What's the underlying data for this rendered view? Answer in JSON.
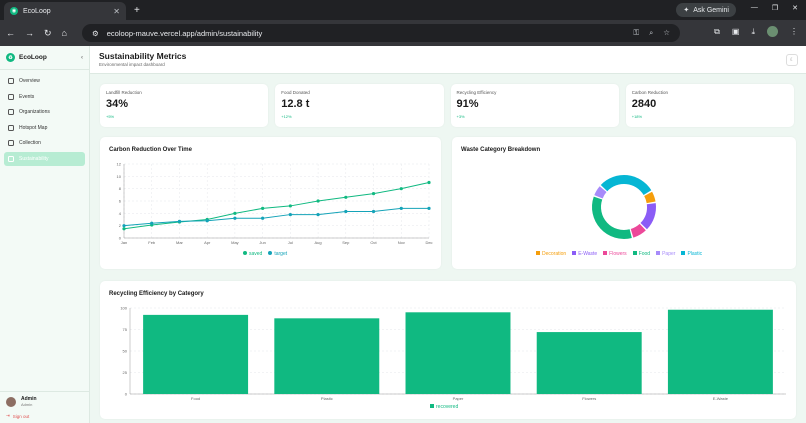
{
  "browser": {
    "tab_title": "EcoLoop",
    "url": "ecoloop-mauve.vercel.app/admin/sustainability",
    "gemini_label": "Ask Gemini"
  },
  "sidebar": {
    "brand": "EcoLoop",
    "items": [
      {
        "label": "Overview"
      },
      {
        "label": "Events"
      },
      {
        "label": "Organizations"
      },
      {
        "label": "Hotspot Map"
      },
      {
        "label": "Collection"
      },
      {
        "label": "Sustainability"
      }
    ],
    "user": {
      "name": "Admin",
      "role": "Admin"
    },
    "sign_out": "Sign out"
  },
  "header": {
    "title": "Sustainability Metrics",
    "subtitle": "Environmental impact dashboard"
  },
  "cards": [
    {
      "label": "Landfill Reduction",
      "value": "34%",
      "change": "+5%"
    },
    {
      "label": "Food Donated",
      "value": "12.8 t",
      "change": "+12%"
    },
    {
      "label": "Recycling Efficiency",
      "value": "91%",
      "change": "+3%"
    },
    {
      "label": "Carbon Reduction",
      "value": "2840",
      "change": "+18%"
    }
  ],
  "colors": {
    "accent": "#10b981",
    "line_saved": "#10b981",
    "line_target": "#14a3b8",
    "donut": [
      "#f59e0b",
      "#8b5cf6",
      "#ec4899",
      "#10b981",
      "#a78bfa",
      "#06b6d4"
    ]
  },
  "chart_data": [
    {
      "type": "line",
      "title": "Carbon Reduction Over Time",
      "categories": [
        "Jan",
        "Feb",
        "Mar",
        "Apr",
        "May",
        "Jun",
        "Jul",
        "Aug",
        "Sep",
        "Oct",
        "Nov",
        "Dec"
      ],
      "series": [
        {
          "name": "saved",
          "values": [
            1.5,
            2.1,
            2.6,
            3.0,
            4.0,
            4.8,
            5.2,
            6.0,
            6.6,
            7.2,
            8.0,
            9.0
          ]
        },
        {
          "name": "target",
          "values": [
            2.0,
            2.4,
            2.7,
            2.8,
            3.2,
            3.2,
            3.8,
            3.8,
            4.3,
            4.3,
            4.8,
            4.8
          ]
        }
      ],
      "yticks": [
        0,
        2,
        4,
        6,
        8,
        10,
        12
      ],
      "ylim": [
        0,
        12
      ],
      "grid": true,
      "legend": "bottom"
    },
    {
      "type": "pie",
      "title": "Waste Category Breakdown",
      "labels": [
        "Decoration",
        "E-Waste",
        "Flowers",
        "Food",
        "Paper",
        "Plastic"
      ],
      "values": [
        6,
        15,
        8,
        35,
        6,
        30
      ],
      "donut": true,
      "legend": "bottom"
    },
    {
      "type": "bar",
      "title": "Recycling Efficiency by Category",
      "categories": [
        "Food",
        "Plastic",
        "Paper",
        "Flowers",
        "E-Waste"
      ],
      "series": [
        {
          "name": "recovered",
          "values": [
            92,
            88,
            95,
            72,
            98
          ]
        }
      ],
      "yticks": [
        0,
        25,
        50,
        75,
        100
      ],
      "ylim": [
        0,
        100
      ],
      "grid": true,
      "legend": "bottom"
    }
  ]
}
